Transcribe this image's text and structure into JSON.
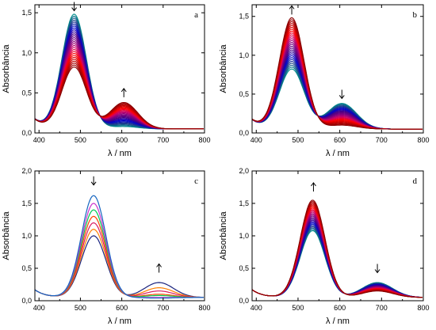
{
  "chart_data": [
    {
      "id": "a",
      "panel_label": "a",
      "type": "line",
      "xlabel": "λ / nm",
      "ylabel": "Absorbância",
      "xlim": [
        390,
        800
      ],
      "ylim": [
        0.0,
        1.6
      ],
      "xticks": [
        400,
        500,
        600,
        700,
        800
      ],
      "yticks": [
        "0,0",
        "0,5",
        "1,0",
        "1,5"
      ],
      "ytick_values": [
        0.0,
        0.5,
        1.0,
        1.5
      ],
      "peaks": [
        {
          "center": 485,
          "width": 42,
          "from": 1.48,
          "to": 0.82
        },
        {
          "center": 605,
          "width": 48,
          "from": 0.08,
          "to": 0.38
        }
      ],
      "baseline": 0.05,
      "n_curves": 28,
      "arrows": [
        {
          "x": 485,
          "y": 1.58,
          "direction": "down"
        },
        {
          "x": 605,
          "y": 0.5,
          "direction": "up"
        }
      ],
      "colors": [
        "#8b0000",
        "#c00000",
        "#ff0000",
        "#cc0066",
        "#800080",
        "#4b0082",
        "#0000cd",
        "#1e3a8a",
        "#008b8b"
      ]
    },
    {
      "id": "b",
      "panel_label": "b",
      "type": "line",
      "xlabel": "λ / nm",
      "ylabel": "Absorbância",
      "xlim": [
        390,
        800
      ],
      "ylim": [
        0.0,
        1.65
      ],
      "xticks": [
        400,
        500,
        600,
        700,
        800
      ],
      "yticks": [
        "0,0",
        "0,5",
        "1,0",
        "1,5"
      ],
      "ytick_values": [
        0.0,
        0.5,
        1.0,
        1.5
      ],
      "peaks": [
        {
          "center": 485,
          "width": 42,
          "from": 0.82,
          "to": 1.48
        },
        {
          "center": 605,
          "width": 50,
          "from": 0.38,
          "to": 0.1
        }
      ],
      "baseline": 0.05,
      "n_curves": 28,
      "arrows": [
        {
          "x": 485,
          "y": 1.58,
          "direction": "up"
        },
        {
          "x": 605,
          "y": 0.5,
          "direction": "down"
        }
      ],
      "colors": [
        "#8b0000",
        "#c00000",
        "#ff0000",
        "#cc0066",
        "#800080",
        "#4b0082",
        "#0000cd",
        "#1e3a8a",
        "#008b8b"
      ]
    },
    {
      "id": "c",
      "panel_label": "c",
      "type": "line",
      "xlabel": "λ / nm",
      "ylabel": "Absorbância",
      "xlim": [
        390,
        800
      ],
      "ylim": [
        0.0,
        2.0
      ],
      "xticks": [
        400,
        500,
        600,
        700,
        800
      ],
      "yticks": [
        "0,0",
        "0,5",
        "1,0",
        "1,5",
        "2,0"
      ],
      "ytick_values": [
        0.0,
        0.5,
        1.0,
        1.5,
        2.0
      ],
      "peaks": [
        {
          "center": 532,
          "width": 42,
          "values": [
            1.0,
            1.1,
            1.2,
            1.3,
            1.4,
            1.5,
            1.62
          ]
        },
        {
          "center": 690,
          "width": 50,
          "values": [
            0.28,
            0.2,
            0.15,
            0.1,
            0.08,
            0.05,
            0.04
          ]
        }
      ],
      "baseline": 0.05,
      "arrows": [
        {
          "x": 532,
          "y": 1.85,
          "direction": "down"
        },
        {
          "x": 690,
          "y": 0.5,
          "direction": "up"
        }
      ],
      "series_colors": [
        "#1a237e",
        "#ff7f00",
        "#d81b60",
        "#ff4500",
        "#00c853",
        "#cc33cc",
        "#1565c0"
      ]
    },
    {
      "id": "d",
      "panel_label": "d",
      "type": "line",
      "xlabel": "λ / nm",
      "ylabel": "Absorbância",
      "xlim": [
        390,
        800
      ],
      "ylim": [
        0.0,
        2.0
      ],
      "xticks": [
        400,
        500,
        600,
        700,
        800
      ],
      "yticks": [
        "0,0",
        "0,5",
        "1,0",
        "1,5",
        "2,0"
      ],
      "ytick_values": [
        0.0,
        0.5,
        1.0,
        1.5,
        2.0
      ],
      "peaks": [
        {
          "center": 535,
          "width": 42,
          "from": 1.08,
          "to": 1.55
        },
        {
          "center": 690,
          "width": 52,
          "from": 0.28,
          "to": 0.15
        }
      ],
      "baseline": 0.05,
      "n_curves": 24,
      "arrows": [
        {
          "x": 537,
          "y": 1.75,
          "direction": "up"
        },
        {
          "x": 690,
          "y": 0.5,
          "direction": "down"
        }
      ],
      "colors": [
        "#8b0000",
        "#c00000",
        "#ff0000",
        "#cc0066",
        "#800080",
        "#4b0082",
        "#0000cd",
        "#1e3a8a",
        "#008b8b"
      ]
    }
  ]
}
